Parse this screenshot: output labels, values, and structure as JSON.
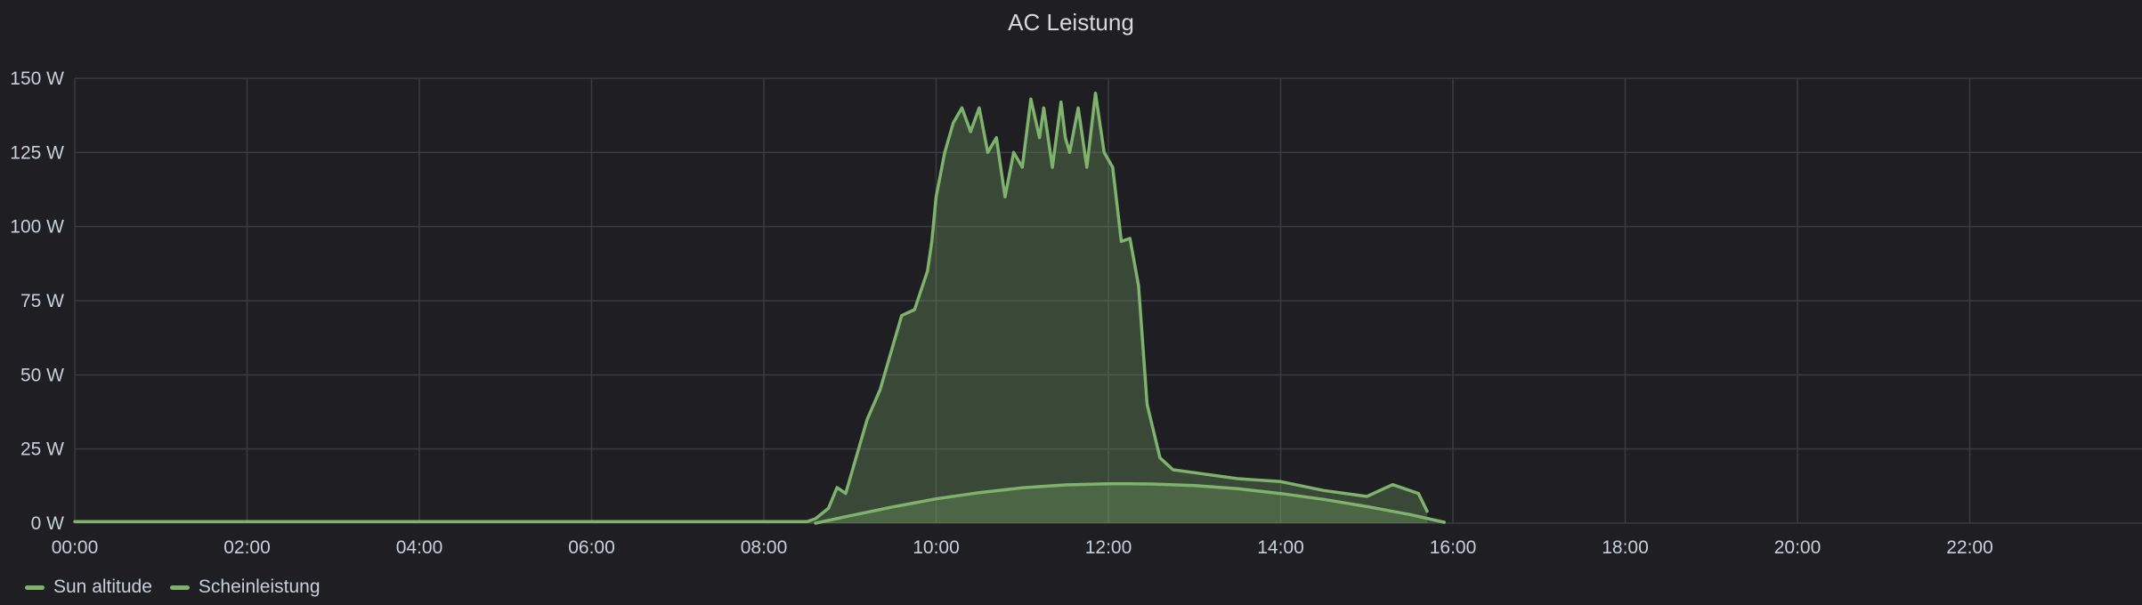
{
  "panel": {
    "title": "AC Leistung"
  },
  "colors": {
    "background": "#1f1f23",
    "grid": "#3a3b40",
    "series": "#7eb26d",
    "fill": "rgba(126,178,109,0.28)"
  },
  "chart_data": {
    "type": "area",
    "title": "AC Leistung",
    "x_unit": "time of day (hours)",
    "xlim": [
      0,
      24
    ],
    "ylim": [
      0,
      150
    ],
    "x_ticks": [
      {
        "value": 0,
        "label": "00:00"
      },
      {
        "value": 2,
        "label": "02:00"
      },
      {
        "value": 4,
        "label": "04:00"
      },
      {
        "value": 6,
        "label": "06:00"
      },
      {
        "value": 8,
        "label": "08:00"
      },
      {
        "value": 10,
        "label": "10:00"
      },
      {
        "value": 12,
        "label": "12:00"
      },
      {
        "value": 14,
        "label": "14:00"
      },
      {
        "value": 16,
        "label": "16:00"
      },
      {
        "value": 18,
        "label": "18:00"
      },
      {
        "value": 20,
        "label": "20:00"
      },
      {
        "value": 22,
        "label": "22:00"
      }
    ],
    "y_ticks": [
      {
        "value": 0,
        "label": "0 W"
      },
      {
        "value": 25,
        "label": "25 W"
      },
      {
        "value": 50,
        "label": "50 W"
      },
      {
        "value": 75,
        "label": "75 W"
      },
      {
        "value": 100,
        "label": "100 W"
      },
      {
        "value": 125,
        "label": "125 W"
      },
      {
        "value": 150,
        "label": "150 W"
      }
    ],
    "grid": true,
    "legend_position": "bottom-left",
    "series": [
      {
        "name": "Sun altitude",
        "color": "#7eb26d",
        "x": [
          8.6,
          9.0,
          9.5,
          10.0,
          10.5,
          11.0,
          11.5,
          12.0,
          12.25,
          12.5,
          13.0,
          13.5,
          14.0,
          14.5,
          15.0,
          15.5,
          15.9
        ],
        "y": [
          0,
          2.5,
          5.5,
          8.2,
          10.3,
          11.9,
          12.9,
          13.3,
          13.3,
          13.2,
          12.7,
          11.6,
          10.0,
          8.0,
          5.6,
          2.9,
          0.3
        ]
      },
      {
        "name": "Scheinleistung",
        "color": "#7eb26d",
        "x": [
          0.0,
          8.5,
          8.6,
          8.75,
          8.85,
          8.95,
          9.1,
          9.2,
          9.35,
          9.5,
          9.6,
          9.75,
          9.9,
          9.95,
          10.0,
          10.1,
          10.2,
          10.3,
          10.4,
          10.5,
          10.6,
          10.7,
          10.8,
          10.9,
          11.0,
          11.1,
          11.2,
          11.25,
          11.35,
          11.45,
          11.5,
          11.55,
          11.65,
          11.75,
          11.85,
          11.95,
          12.05,
          12.15,
          12.25,
          12.35,
          12.45,
          12.6,
          12.75,
          13.0,
          13.5,
          14.0,
          14.5,
          15.0,
          15.3,
          15.6,
          15.7
        ],
        "y": [
          0.5,
          0.5,
          1.5,
          5,
          12,
          10,
          25,
          35,
          45,
          60,
          70,
          72,
          85,
          95,
          110,
          125,
          135,
          140,
          132,
          140,
          125,
          130,
          110,
          125,
          120,
          143,
          130,
          140,
          120,
          142,
          130,
          125,
          140,
          120,
          145,
          125,
          120,
          95,
          96,
          80,
          40,
          22,
          18,
          17,
          15,
          14,
          11,
          9,
          13,
          10,
          4
        ]
      }
    ]
  },
  "legend": {
    "items": [
      {
        "label": "Sun altitude",
        "color": "#7eb26d"
      },
      {
        "label": "Scheinleistung",
        "color": "#7eb26d"
      }
    ]
  }
}
